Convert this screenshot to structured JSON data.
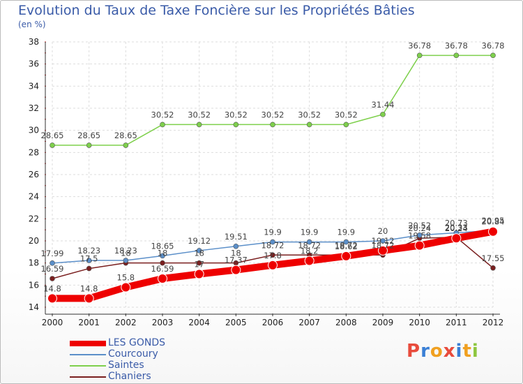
{
  "chart_data": {
    "type": "line",
    "title": "Evolution du Taux de Taxe Foncière sur les Propriétés Bâties",
    "unit_label": "(en %)",
    "x": [
      "2000",
      "2001",
      "2002",
      "2003",
      "2004",
      "2005",
      "2006",
      "2007",
      "2008",
      "2009",
      "2010",
      "2011",
      "2012"
    ],
    "ylim": [
      14,
      38
    ],
    "yticks": [
      "14",
      "16",
      "18",
      "20",
      "22",
      "24",
      "26",
      "28",
      "30",
      "32",
      "34",
      "36",
      "38"
    ],
    "grid": true,
    "legend_position": "bottom-left",
    "series": [
      {
        "name": "LES GONDS",
        "color": "#ee0000",
        "values": [
          14.8,
          14.8,
          15.8,
          16.59,
          17,
          17.37,
          17.8,
          18.2,
          18.62,
          19.12,
          19.58,
          20.24,
          20.84
        ],
        "labels": [
          "14.8",
          "14.8",
          "15.8",
          "16.59",
          "17",
          "17.37",
          "17.8",
          "18.2",
          "18.62",
          "19.12",
          "19.58",
          "20.24",
          "20.84"
        ]
      },
      {
        "name": "Courcoury",
        "color": "#5b8fc9",
        "values": [
          17.99,
          18.23,
          18.23,
          18.65,
          19.12,
          19.51,
          19.9,
          19.9,
          19.9,
          20,
          20.52,
          20.73,
          20.95
        ],
        "labels": [
          "17.99",
          "18.23",
          "18.23",
          "18.65",
          "19.12",
          "19.51",
          "19.9",
          "19.9",
          "19.9",
          "20",
          "20.52",
          "20.73",
          "20.95"
        ]
      },
      {
        "name": "Saintes",
        "color": "#7ed04c",
        "values": [
          28.65,
          28.65,
          28.65,
          30.52,
          30.52,
          30.52,
          30.52,
          30.52,
          30.52,
          31.44,
          36.78,
          36.78,
          36.78
        ],
        "labels": [
          "28.65",
          "28.65",
          "28.65",
          "30.52",
          "30.52",
          "30.52",
          "30.52",
          "30.52",
          "30.52",
          "31.44",
          "36.78",
          "36.78",
          "36.78"
        ]
      },
      {
        "name": "Chaniers",
        "color": "#7a1f1f",
        "values": [
          16.59,
          17.5,
          18,
          18,
          18,
          18,
          18.72,
          18.72,
          18.72,
          18.72,
          20.24,
          20.33,
          17.55
        ],
        "labels": [
          "16.59",
          "17.5",
          "18",
          "18",
          "18",
          "18",
          "18.72",
          "18.72",
          "18.72",
          "18.72",
          "20.24",
          "20.33",
          "17.55"
        ]
      }
    ]
  },
  "logo": {
    "letters": [
      "P",
      "r",
      "o",
      "x",
      "i",
      "t",
      "i"
    ],
    "colors": [
      "#e84b3c",
      "#3a7fd5",
      "#f0a020",
      "#e84b3c",
      "#3a7fd5",
      "#f0a020",
      "#8dc63f"
    ]
  }
}
